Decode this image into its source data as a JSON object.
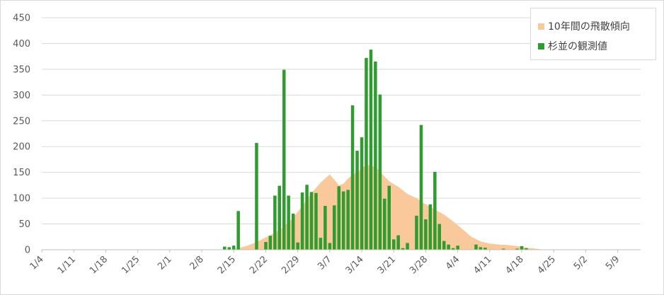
{
  "chart_data": {
    "type": "bar",
    "y_range": [
      0,
      450
    ],
    "y_ticks": [
      0,
      50,
      100,
      150,
      200,
      250,
      300,
      350,
      400,
      450
    ],
    "x_tick_labels": [
      "1/4",
      "1/11",
      "1/18",
      "1/25",
      "2/1",
      "2/8",
      "2/15",
      "2/22",
      "2/29",
      "3/7",
      "3/14",
      "3/21",
      "3/28",
      "4/4",
      "4/11",
      "4/18",
      "4/25",
      "5/2",
      "5/9"
    ],
    "grid": true,
    "legend_position": "top-right",
    "legend": [
      "10年間の飛散傾向",
      "杉並の観測値"
    ],
    "colors": {
      "trend": "#f9c89b",
      "observed": "#2e9c2e"
    },
    "series": [
      {
        "name": "10年間の飛散傾向",
        "type": "area",
        "points": [
          [
            "2/14",
            0
          ],
          [
            "2/16",
            3
          ],
          [
            "2/18",
            8
          ],
          [
            "2/20",
            15
          ],
          [
            "2/22",
            24
          ],
          [
            "2/24",
            33
          ],
          [
            "2/26",
            45
          ],
          [
            "2/28",
            62
          ],
          [
            "3/1",
            85
          ],
          [
            "3/3",
            110
          ],
          [
            "3/5",
            130
          ],
          [
            "3/6",
            138
          ],
          [
            "3/7",
            146
          ],
          [
            "3/8",
            136
          ],
          [
            "3/9",
            125
          ],
          [
            "3/10",
            128
          ],
          [
            "3/11",
            138
          ],
          [
            "3/12",
            145
          ],
          [
            "3/13",
            150
          ],
          [
            "3/14",
            158
          ],
          [
            "3/15",
            165
          ],
          [
            "3/16",
            163
          ],
          [
            "3/17",
            160
          ],
          [
            "3/18",
            152
          ],
          [
            "3/19",
            142
          ],
          [
            "3/20",
            133
          ],
          [
            "3/21",
            127
          ],
          [
            "3/22",
            122
          ],
          [
            "3/24",
            108
          ],
          [
            "3/26",
            100
          ],
          [
            "3/28",
            88
          ],
          [
            "3/30",
            78
          ],
          [
            "4/1",
            68
          ],
          [
            "4/3",
            55
          ],
          [
            "4/5",
            40
          ],
          [
            "4/7",
            25
          ],
          [
            "4/9",
            16
          ],
          [
            "4/11",
            12
          ],
          [
            "4/13",
            10
          ],
          [
            "4/15",
            9
          ],
          [
            "4/17",
            7
          ],
          [
            "4/19",
            4
          ],
          [
            "4/21",
            2
          ],
          [
            "4/23",
            0
          ]
        ]
      },
      {
        "name": "杉並の観測値",
        "type": "bar",
        "points": [
          [
            "2/13",
            6
          ],
          [
            "2/14",
            5
          ],
          [
            "2/15",
            8
          ],
          [
            "2/16",
            75
          ],
          [
            "2/20",
            207
          ],
          [
            "2/22",
            15
          ],
          [
            "2/23",
            27
          ],
          [
            "2/24",
            105
          ],
          [
            "2/25",
            124
          ],
          [
            "2/26",
            349
          ],
          [
            "2/27",
            105
          ],
          [
            "2/28",
            70
          ],
          [
            "2/29",
            14
          ],
          [
            "3/1",
            111
          ],
          [
            "3/2",
            126
          ],
          [
            "3/3",
            112
          ],
          [
            "3/4",
            110
          ],
          [
            "3/5",
            23
          ],
          [
            "3/6",
            85
          ],
          [
            "3/7",
            13
          ],
          [
            "3/8",
            86
          ],
          [
            "3/9",
            123
          ],
          [
            "3/10",
            113
          ],
          [
            "3/11",
            116
          ],
          [
            "3/12",
            280
          ],
          [
            "3/13",
            192
          ],
          [
            "3/14",
            218
          ],
          [
            "3/15",
            372
          ],
          [
            "3/16",
            388
          ],
          [
            "3/17",
            365
          ],
          [
            "3/18",
            301
          ],
          [
            "3/19",
            99
          ],
          [
            "3/20",
            124
          ],
          [
            "3/21",
            20
          ],
          [
            "3/22",
            28
          ],
          [
            "3/23",
            3
          ],
          [
            "3/24",
            13
          ],
          [
            "3/26",
            66
          ],
          [
            "3/27",
            242
          ],
          [
            "3/28",
            59
          ],
          [
            "3/29",
            88
          ],
          [
            "3/30",
            151
          ],
          [
            "3/31",
            50
          ],
          [
            "4/1",
            17
          ],
          [
            "4/2",
            10
          ],
          [
            "4/3",
            3
          ],
          [
            "4/4",
            8
          ],
          [
            "4/8",
            10
          ],
          [
            "4/9",
            5
          ],
          [
            "4/10",
            4
          ],
          [
            "4/14",
            2
          ],
          [
            "4/17",
            2
          ],
          [
            "4/18",
            7
          ],
          [
            "4/19",
            3
          ]
        ]
      }
    ]
  }
}
